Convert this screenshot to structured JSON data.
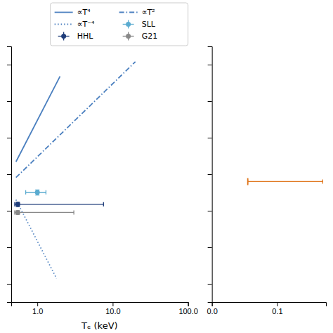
{
  "chart_data": [
    {
      "type": "line",
      "xlabel": "Tₑ (keV)",
      "log": true,
      "xlim": [
        0.45,
        100.0
      ],
      "xticks": [
        {
          "value": 1.0,
          "label": "1.0"
        },
        {
          "value": 10.0,
          "label": "10.0"
        },
        {
          "value": 100.0,
          "label": "100.0"
        }
      ],
      "ylim": [
        3.162277660168379e+33,
        3.1622776601683795e+40
      ],
      "yticks": [
        1e+34,
        1e+35,
        1e+36,
        1e+37,
        1e+38,
        1e+39,
        1e+40
      ],
      "tick_labels": "x",
      "legend": "upper right",
      "series": [
        {
          "name": "∝T⁴",
          "type": "line",
          "color": "#4a7fbf",
          "line_style": "solid",
          "x": [
            0.52,
            2.0
          ],
          "values": [
            2.1934848e+37,
            4.8e+39
          ]
        },
        {
          "name": "∝T²",
          "type": "line",
          "color": "#4a7fbf",
          "line_style": "dashdot",
          "x": [
            0.52,
            20.0
          ],
          "values": [
            8.112e+36,
            1.2e+40
          ]
        },
        {
          "name": "∝T⁻⁴",
          "type": "line",
          "color": "#4a7fbf",
          "line_style": "dotted",
          "x": [
            0.52,
            1.8
          ],
          "values": [
            2e+36,
            1.393007162e+34
          ]
        },
        {
          "name": "SLL",
          "type": "scatter",
          "color": "#5aabd0",
          "marker": "circle",
          "x": [
            1.0
          ],
          "values": [
            3.2e+36
          ],
          "x_error_low": [
            0.3
          ],
          "x_error_high": [
            0.3
          ],
          "error_low": [
            5e+35
          ],
          "error_high": [
            5e+35
          ]
        },
        {
          "name": "HHL",
          "type": "scatter",
          "color": "#1f3d7a",
          "marker": "circle",
          "x": [
            0.55
          ],
          "values": [
            1.5e+36
          ],
          "x_error_low": [
            0.05
          ],
          "x_error_high": [
            7.0
          ],
          "error_low": [
            2e+35
          ],
          "error_high": [
            2e+35
          ]
        },
        {
          "name": "G21",
          "type": "scatter",
          "color": "#888888",
          "marker": "circle",
          "x": [
            0.55
          ],
          "values": [
            9e+35
          ],
          "x_error_low": [
            0.05
          ],
          "x_error_high": [
            2.5
          ],
          "error_low": [
            1e+35
          ],
          "error_high": [
            1e+35
          ]
        }
      ]
    },
    {
      "type": "scatter",
      "log": "y",
      "xlim": [
        0.0,
        0.175
      ],
      "xticks": [
        {
          "value": 0.0,
          "label": "0.0"
        },
        {
          "value": 0.1,
          "label": "0.1"
        }
      ],
      "ylim": [
        3.162277660168379e+33,
        3.1622776601683795e+40
      ],
      "yticks": [
        1e+34,
        1e+35,
        1e+36,
        1e+37,
        1e+38,
        1e+39,
        1e+40
      ],
      "tick_labels": "x",
      "series": [
        {
          "type": "scatter",
          "color": "#e07820",
          "marker": "vline",
          "x": [
            0.055
          ],
          "values": [
            6.309573444801943e+36
          ],
          "x_error_low": [
            0.0
          ],
          "x_error_high": [
            0.115
          ]
        }
      ]
    }
  ]
}
